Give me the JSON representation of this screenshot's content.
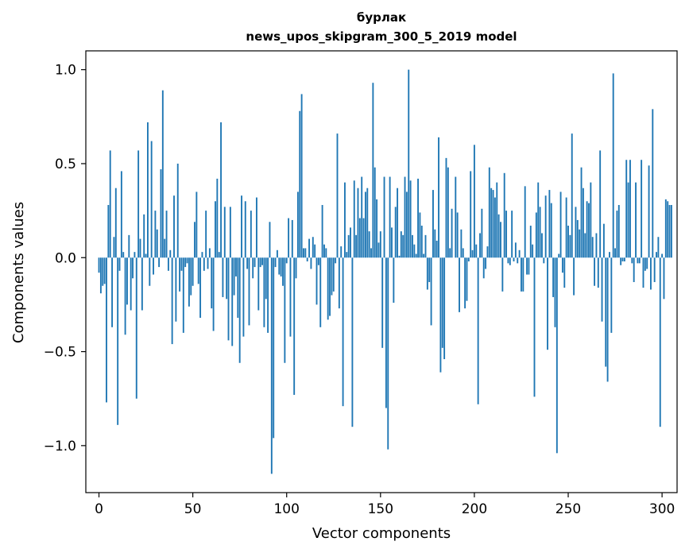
{
  "chart_data": {
    "type": "bar",
    "title": "бурлак",
    "subtitle": "news_upos_skipgram_300_5_2019 model",
    "xlabel": "Vector components",
    "ylabel": "Components values",
    "xlim": [
      -7,
      308
    ],
    "ylim": [
      -1.25,
      1.1
    ],
    "xticks": [
      0,
      50,
      100,
      150,
      200,
      250,
      300
    ],
    "xtick_labels": [
      "0",
      "50",
      "100",
      "150",
      "200",
      "250",
      "300"
    ],
    "yticks": [
      1.0,
      0.5,
      0.0,
      -0.5,
      -1.0
    ],
    "ytick_labels": [
      "1.0",
      "0.5",
      "0.0",
      "−0.5",
      "−1.0"
    ],
    "bar_color": "#1f77b4",
    "bar_width": 0.8,
    "values": [
      -0.08,
      -0.19,
      -0.15,
      -0.14,
      -0.77,
      0.28,
      0.57,
      -0.37,
      0.11,
      0.37,
      -0.89,
      -0.07,
      0.46,
      0.03,
      -0.41,
      -0.25,
      0.12,
      -0.28,
      -0.11,
      0.03,
      -0.75,
      0.57,
      0.1,
      -0.28,
      0.23,
      0.02,
      0.72,
      -0.15,
      0.62,
      -0.09,
      0.25,
      0.15,
      -0.05,
      0.47,
      0.89,
      0.1,
      0.25,
      -0.07,
      0.04,
      -0.46,
      0.33,
      -0.34,
      0.5,
      -0.18,
      -0.07,
      -0.4,
      -0.05,
      -0.03,
      -0.26,
      -0.2,
      -0.15,
      0.19,
      0.35,
      -0.14,
      -0.32,
      0.03,
      -0.07,
      0.25,
      -0.06,
      0.05,
      -0.27,
      -0.39,
      0.3,
      0.42,
      0.03,
      0.72,
      -0.21,
      0.27,
      -0.22,
      -0.44,
      0.27,
      -0.47,
      -0.2,
      -0.1,
      -0.32,
      -0.56,
      0.33,
      -0.42,
      0.3,
      -0.06,
      -0.36,
      0.25,
      -0.11,
      -0.05,
      0.32,
      -0.28,
      -0.05,
      -0.04,
      -0.37,
      -0.22,
      -0.4,
      0.19,
      -1.15,
      -0.96,
      -0.05,
      0.04,
      -0.09,
      -0.1,
      -0.15,
      -0.56,
      -0.03,
      0.21,
      -0.42,
      0.2,
      -0.73,
      -0.11,
      0.35,
      0.78,
      0.87,
      0.05,
      0.05,
      -0.02,
      0.1,
      -0.06,
      0.11,
      0.07,
      -0.25,
      -0.04,
      -0.37,
      0.28,
      0.07,
      0.05,
      -0.33,
      -0.31,
      -0.2,
      -0.18,
      -0.03,
      0.66,
      -0.27,
      0.06,
      -0.79,
      0.4,
      0.03,
      0.12,
      0.16,
      -0.9,
      0.41,
      0.12,
      0.37,
      0.21,
      0.43,
      0.21,
      0.35,
      0.37,
      0.14,
      0.05,
      0.93,
      0.48,
      0.31,
      0.08,
      0.14,
      -0.48,
      0.43,
      -0.8,
      -1.02,
      0.43,
      0.16,
      -0.24,
      0.27,
      0.37,
      0.01,
      0.14,
      0.12,
      0.43,
      0.35,
      1.0,
      0.41,
      0.12,
      0.07,
      0.02,
      0.42,
      0.24,
      0.17,
      0.02,
      0.12,
      -0.17,
      -0.13,
      -0.36,
      0.36,
      0.15,
      0.09,
      0.64,
      -0.61,
      -0.48,
      -0.54,
      0.53,
      0.48,
      0.05,
      0.26,
      0.0,
      0.43,
      0.24,
      -0.29,
      0.15,
      0.05,
      -0.27,
      -0.23,
      -0.02,
      0.46,
      0.04,
      0.6,
      0.07,
      -0.78,
      0.13,
      0.26,
      -0.11,
      -0.06,
      0.06,
      0.48,
      0.37,
      0.36,
      0.32,
      0.4,
      0.23,
      0.19,
      -0.18,
      0.45,
      0.25,
      -0.03,
      -0.04,
      0.25,
      -0.02,
      0.08,
      -0.03,
      0.04,
      -0.18,
      -0.18,
      0.38,
      -0.09,
      -0.09,
      0.17,
      0.07,
      -0.74,
      0.24,
      0.4,
      0.27,
      0.13,
      -0.03,
      0.33,
      -0.49,
      0.36,
      0.29,
      -0.21,
      -0.37,
      -1.04,
      0.02,
      0.35,
      -0.08,
      -0.16,
      0.32,
      0.17,
      0.12,
      0.66,
      -0.2,
      0.27,
      0.2,
      0.15,
      0.48,
      0.37,
      0.13,
      0.3,
      0.29,
      0.4,
      0.11,
      -0.15,
      0.13,
      -0.16,
      0.57,
      -0.34,
      0.18,
      -0.58,
      -0.66,
      0.03,
      -0.4,
      0.98,
      0.05,
      0.25,
      0.28,
      -0.04,
      -0.02,
      -0.02,
      0.52,
      0.4,
      0.52,
      -0.03,
      -0.13,
      0.4,
      -0.03,
      -0.03,
      0.52,
      -0.16,
      -0.07,
      -0.06,
      0.49,
      -0.17,
      0.79,
      -0.13,
      0.03,
      0.11,
      -0.9,
      0.02,
      -0.22,
      0.31,
      0.3,
      0.28,
      0.28
    ]
  }
}
